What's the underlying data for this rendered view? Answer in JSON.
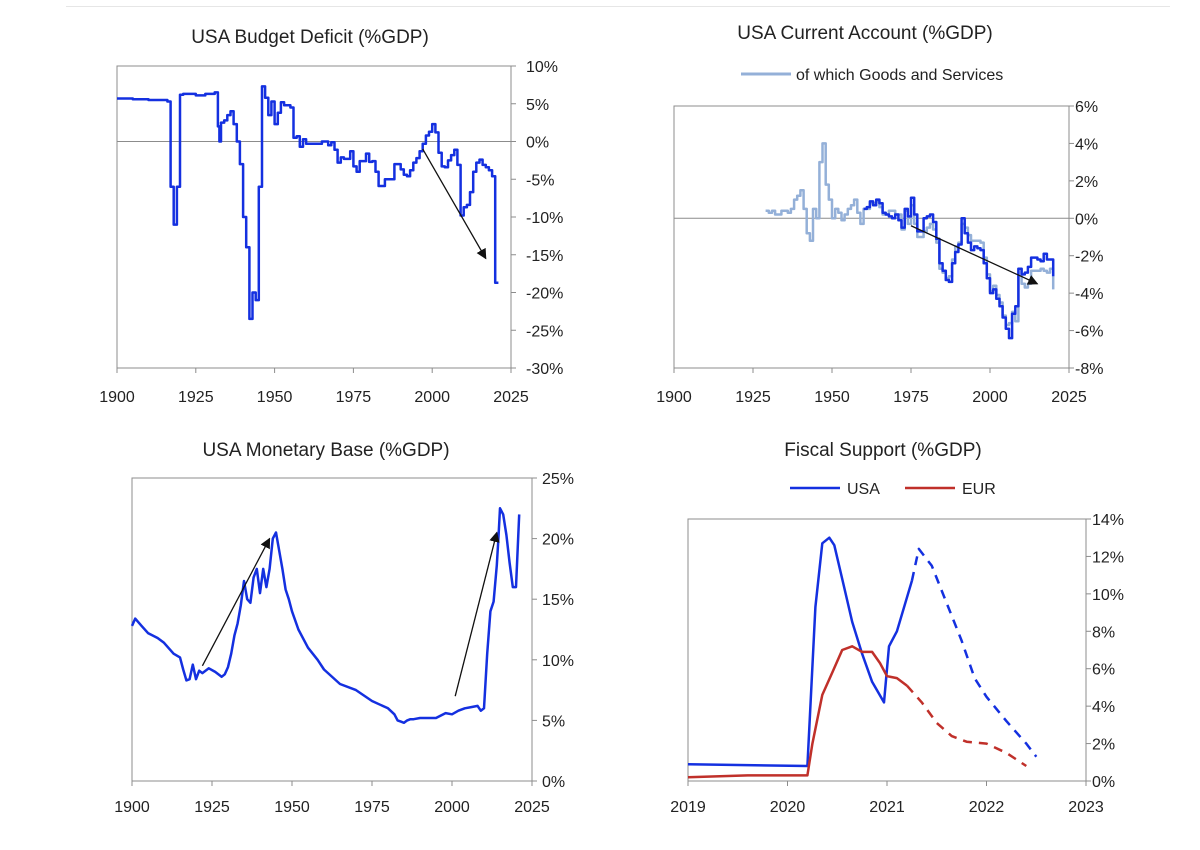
{
  "colors": {
    "usa_blue": "#1430e0",
    "light_blue": "#94b0d8",
    "eur_red": "#c0302a",
    "axis": "#8c8c8c",
    "arrow": "#111111"
  },
  "chart_data": [
    {
      "id": "deficit",
      "type": "line",
      "title": "USA Budget Deficit (%GDP)",
      "x_ticks": [
        "1900",
        "1925",
        "1950",
        "1975",
        "2000",
        "2025"
      ],
      "y_ticks": [
        "10%",
        "5%",
        "0%",
        "-5%",
        "-10%",
        "-15%",
        "-20%",
        "-25%",
        "-30%"
      ],
      "xlim": [
        1900,
        2025
      ],
      "ylim": [
        -30,
        10
      ],
      "series": [
        {
          "name": "USA",
          "color": "usa_blue",
          "step": true,
          "x": [
            1900,
            1905,
            1910,
            1916,
            1917,
            1918,
            1918.5,
            1919,
            1920,
            1921,
            1925,
            1928,
            1931,
            1932,
            1932.5,
            1933,
            1934,
            1935,
            1936,
            1937,
            1938,
            1939,
            1940,
            1941,
            1942,
            1943,
            1944,
            1945,
            1946,
            1947,
            1948,
            1949,
            1950,
            1951,
            1952,
            1953,
            1955,
            1956,
            1957,
            1958,
            1959,
            1960,
            1965,
            1967,
            1968,
            1969,
            1970,
            1971,
            1972,
            1974,
            1975,
            1976,
            1977,
            1978,
            1979,
            1980,
            1981,
            1982,
            1983,
            1985,
            1988,
            1989,
            1990,
            1991,
            1992,
            1993,
            1994,
            1995,
            1996,
            1997,
            1998,
            1999,
            2000,
            2001,
            2002,
            2003,
            2004,
            2005,
            2006,
            2007,
            2008,
            2009,
            2010,
            2011,
            2012,
            2013,
            2014,
            2015,
            2016,
            2017,
            2018,
            2019,
            2020,
            2021
          ],
          "values": [
            5.7,
            5.6,
            5.5,
            5.3,
            -6,
            -11,
            -11,
            -6,
            6.2,
            6.3,
            6.1,
            6.3,
            6.5,
            2,
            0,
            2.5,
            2.8,
            3.5,
            4,
            2.3,
            0,
            -3,
            -10,
            -14,
            -23.5,
            -20,
            -21,
            -6,
            7.3,
            5.8,
            3.5,
            5.3,
            2.3,
            3.8,
            5.2,
            4.8,
            4.5,
            0.5,
            0.7,
            -0.7,
            0.3,
            -0.3,
            0,
            -0.5,
            -0.1,
            -1.1,
            -2.8,
            -2.1,
            -2.3,
            -1.3,
            -3.3,
            -4,
            -2.6,
            -2.6,
            -1.6,
            -2.7,
            -2.6,
            -4,
            -5.9,
            -5,
            -3,
            -3,
            -3.7,
            -4.4,
            -4.6,
            -3.8,
            -2.8,
            -2.2,
            -1.3,
            -0.3,
            0.8,
            1.3,
            2.3,
            1.2,
            -1.5,
            -3.3,
            -3.4,
            -2.5,
            -1.8,
            -1.1,
            -3.1,
            -9.8,
            -8.7,
            -8.4,
            -6.7,
            -4,
            -2.8,
            -2.4,
            -3.1,
            -3.4,
            -3.8,
            -4.6,
            -18.7,
            -18.7
          ]
        }
      ],
      "annotations": [
        {
          "type": "arrow",
          "from": [
            1997,
            -1
          ],
          "to": [
            2017,
            -15.5
          ]
        }
      ]
    },
    {
      "id": "current",
      "type": "line",
      "title": "USA Current Account (%GDP)",
      "legend": {
        "label": "of which Goods and Services",
        "color": "light_blue",
        "placement": "top-right"
      },
      "x_ticks": [
        "1900",
        "1925",
        "1950",
        "1975",
        "2000",
        "2025"
      ],
      "y_ticks": [
        "6%",
        "4%",
        "2%",
        "0%",
        "-2%",
        "-4%",
        "-6%",
        "-8%"
      ],
      "xlim": [
        1900,
        2025
      ],
      "ylim": [
        -8,
        6
      ],
      "series": [
        {
          "name": "of which Goods and Services",
          "color": "light_blue",
          "step": true,
          "x": [
            1929,
            1930,
            1931,
            1932,
            1934,
            1936,
            1937,
            1938,
            1939,
            1940,
            1941,
            1942,
            1943,
            1944,
            1945,
            1946,
            1947,
            1948,
            1949,
            1950,
            1951,
            1952,
            1953,
            1954,
            1955,
            1956,
            1957,
            1958,
            1959,
            1960,
            1962,
            1964,
            1965,
            1966,
            1968,
            1970,
            1972,
            1973,
            1974,
            1975,
            1976,
            1977,
            1978,
            1979,
            1980,
            1981,
            1982,
            1983,
            1984,
            1985,
            1986,
            1987,
            1988,
            1989,
            1990,
            1991,
            1992,
            1993,
            1994,
            1995,
            1996,
            1997,
            1998,
            1999,
            2000,
            2001,
            2002,
            2003,
            2004,
            2005,
            2006,
            2007,
            2008,
            2009,
            2010,
            2011,
            2012,
            2013,
            2014,
            2015,
            2016,
            2017,
            2018,
            2019,
            2020
          ],
          "values": [
            0.4,
            0.3,
            0.4,
            0.2,
            0.4,
            0.3,
            0.5,
            1,
            1.2,
            1.5,
            0.5,
            -0.8,
            -1.2,
            0.5,
            0,
            3,
            4,
            1.8,
            1,
            0,
            0.5,
            0.3,
            -0.1,
            0.2,
            0.5,
            0.7,
            1,
            0.3,
            -0.3,
            0.5,
            0.8,
            0.9,
            0.6,
            0.2,
            0.4,
            0.2,
            -0.6,
            0.4,
            -0.3,
            0.7,
            -0.3,
            -1,
            -1,
            -0.7,
            -0.5,
            -0.3,
            -0.6,
            -1.3,
            -2.7,
            -2.9,
            -3.2,
            -3.1,
            -2.2,
            -1.5,
            -1.3,
            -0.3,
            -0.5,
            -0.9,
            -1.2,
            -1.2,
            -1.2,
            -1.3,
            -2.1,
            -3,
            -3.9,
            -3.6,
            -4.1,
            -4.5,
            -5.2,
            -5.7,
            -5.6,
            -5,
            -5.5,
            -2.7,
            -3.5,
            -3.7,
            -3.5,
            -2.8,
            -2.8,
            -2.8,
            -2.7,
            -2.8,
            -2.9,
            -2.7,
            -3.8
          ]
        },
        {
          "name": "USA",
          "color": "usa_blue",
          "step": true,
          "x": [
            1960,
            1961,
            1962,
            1963,
            1964,
            1965,
            1966,
            1967,
            1968,
            1969,
            1970,
            1971,
            1972,
            1973,
            1974,
            1975,
            1976,
            1977,
            1978,
            1979,
            1980,
            1981,
            1982,
            1983,
            1984,
            1985,
            1986,
            1987,
            1988,
            1989,
            1990,
            1991,
            1992,
            1993,
            1994,
            1995,
            1996,
            1997,
            1998,
            1999,
            2000,
            2001,
            2002,
            2003,
            2004,
            2005,
            2006,
            2007,
            2008,
            2009,
            2010,
            2011,
            2012,
            2013,
            2014,
            2015,
            2016,
            2017,
            2018,
            2019,
            2020
          ],
          "values": [
            0.5,
            0.6,
            0.9,
            0.7,
            1,
            0.8,
            0.3,
            0.2,
            0.1,
            0,
            0.2,
            -0.1,
            -0.5,
            0.5,
            0.1,
            1.1,
            0.2,
            -0.7,
            -0.7,
            0,
            0.1,
            0.2,
            -0.2,
            -1.1,
            -2.4,
            -2.8,
            -3.3,
            -3.4,
            -2.4,
            -1.8,
            -1.4,
            0,
            -0.8,
            -1.3,
            -1.7,
            -1.5,
            -1.6,
            -1.7,
            -2.4,
            -3.2,
            -4,
            -3.8,
            -4.3,
            -4.7,
            -5.3,
            -5.9,
            -6.4,
            -5.1,
            -4.7,
            -2.7,
            -3,
            -2.9,
            -2.6,
            -2.1,
            -2.1,
            -2.2,
            -2.3,
            -1.9,
            -2.2,
            -2.2,
            -3.1
          ]
        }
      ],
      "annotations": [
        {
          "type": "arrow",
          "from": [
            1975,
            -0.4
          ],
          "to": [
            2015,
            -3.5
          ]
        }
      ]
    },
    {
      "id": "monetary",
      "type": "line",
      "title": "USA Monetary Base (%GDP)",
      "x_ticks": [
        "1900",
        "1925",
        "1950",
        "1975",
        "2000",
        "2025"
      ],
      "y_ticks": [
        "25%",
        "20%",
        "15%",
        "10%",
        "5%",
        "0%"
      ],
      "xlim": [
        1900,
        2025
      ],
      "ylim": [
        0,
        25
      ],
      "series": [
        {
          "name": "USA",
          "color": "usa_blue",
          "step": false,
          "x": [
            1900,
            1901,
            1903,
            1905,
            1908,
            1910,
            1913,
            1915,
            1916,
            1917,
            1918,
            1919,
            1920,
            1921,
            1922,
            1924,
            1926,
            1928,
            1929,
            1930,
            1931,
            1932,
            1933,
            1934,
            1935,
            1936,
            1937,
            1938,
            1939,
            1940,
            1941,
            1942,
            1943,
            1944,
            1945,
            1946,
            1947,
            1948,
            1949,
            1950,
            1952,
            1955,
            1958,
            1960,
            1965,
            1970,
            1975,
            1980,
            1982,
            1983,
            1984,
            1985,
            1986,
            1987,
            1988,
            1990,
            1992,
            1995,
            1998,
            2000,
            2002,
            2004,
            2006,
            2008,
            2009,
            2010,
            2011,
            2012,
            2013,
            2014,
            2014.5,
            2015,
            2016,
            2017,
            2018,
            2019,
            2020,
            2021
          ],
          "values": [
            12.8,
            13.4,
            12.8,
            12.2,
            11.8,
            11.4,
            10.5,
            10.2,
            9.2,
            8.3,
            8.4,
            9.6,
            8.4,
            9.1,
            8.9,
            9.3,
            9,
            8.6,
            8.8,
            9.4,
            10.5,
            12,
            13,
            14.5,
            16.5,
            15,
            14.7,
            16.8,
            17.5,
            15.5,
            17.5,
            16,
            17.5,
            20,
            20.5,
            19,
            17.5,
            15.8,
            15,
            14,
            12.5,
            11,
            10,
            9.2,
            8,
            7.5,
            6.6,
            6,
            5.5,
            5,
            4.9,
            4.8,
            5,
            5.1,
            5.1,
            5.2,
            5.2,
            5.2,
            5.6,
            5.5,
            5.8,
            6,
            6.1,
            6.2,
            5.8,
            6,
            10.5,
            14,
            14.8,
            17.8,
            20,
            22.5,
            22,
            20.3,
            18,
            16,
            16,
            22
          ]
        }
      ],
      "annotations": [
        {
          "type": "arrow",
          "from": [
            1922,
            9.5
          ],
          "to": [
            1943,
            20
          ]
        },
        {
          "type": "arrow",
          "from": [
            2001,
            7
          ],
          "to": [
            2014,
            20.5
          ]
        }
      ]
    },
    {
      "id": "fiscal",
      "type": "line",
      "title": "Fiscal Support (%GDP)",
      "legend_items": [
        {
          "label": "USA",
          "color": "usa_blue"
        },
        {
          "label": "EUR",
          "color": "eur_red"
        }
      ],
      "x_ticks": [
        "2019",
        "2020",
        "2021",
        "2022",
        "2023"
      ],
      "y_ticks": [
        "14%",
        "12%",
        "10%",
        "8%",
        "6%",
        "4%",
        "2%",
        "0%"
      ],
      "xlim": [
        2019,
        2023
      ],
      "ylim": [
        0,
        14
      ],
      "series": [
        {
          "name": "USA",
          "color": "usa_blue",
          "dashed": false,
          "x": [
            2019,
            2020.2,
            2020.28,
            2020.35,
            2020.42,
            2020.47,
            2020.55,
            2020.65,
            2020.75,
            2020.85,
            2020.97,
            2021.02,
            2021.1,
            2021.25
          ],
          "values": [
            0.9,
            0.8,
            9.3,
            12.7,
            13,
            12.6,
            10.8,
            8.5,
            6.8,
            5.3,
            4.2,
            7.2,
            8,
            10.7
          ]
        },
        {
          "name": "USA forecast",
          "color": "usa_blue",
          "dashed": true,
          "x": [
            2021.25,
            2021.32,
            2021.45,
            2021.6,
            2021.75,
            2021.88,
            2022,
            2022.2,
            2022.4,
            2022.5
          ],
          "values": [
            10.7,
            12.4,
            11.5,
            9.5,
            7.5,
            5.5,
            4.5,
            3.2,
            2,
            1.3
          ]
        },
        {
          "name": "EUR",
          "color": "eur_red",
          "dashed": false,
          "x": [
            2019,
            2019.6,
            2020.2,
            2020.25,
            2020.35,
            2020.45,
            2020.55,
            2020.65,
            2020.75,
            2020.85,
            2020.93,
            2021.0,
            2021.1,
            2021.2
          ],
          "values": [
            0.2,
            0.3,
            0.3,
            2,
            4.6,
            5.8,
            7,
            7.2,
            6.9,
            6.9,
            6.3,
            5.6,
            5.5,
            5.1
          ]
        },
        {
          "name": "EUR forecast",
          "color": "eur_red",
          "dashed": true,
          "x": [
            2021.2,
            2021.35,
            2021.5,
            2021.65,
            2021.8,
            2022.0,
            2022.2,
            2022.4
          ],
          "values": [
            5.1,
            4.2,
            3.1,
            2.4,
            2.1,
            2,
            1.5,
            0.8
          ]
        }
      ]
    }
  ]
}
